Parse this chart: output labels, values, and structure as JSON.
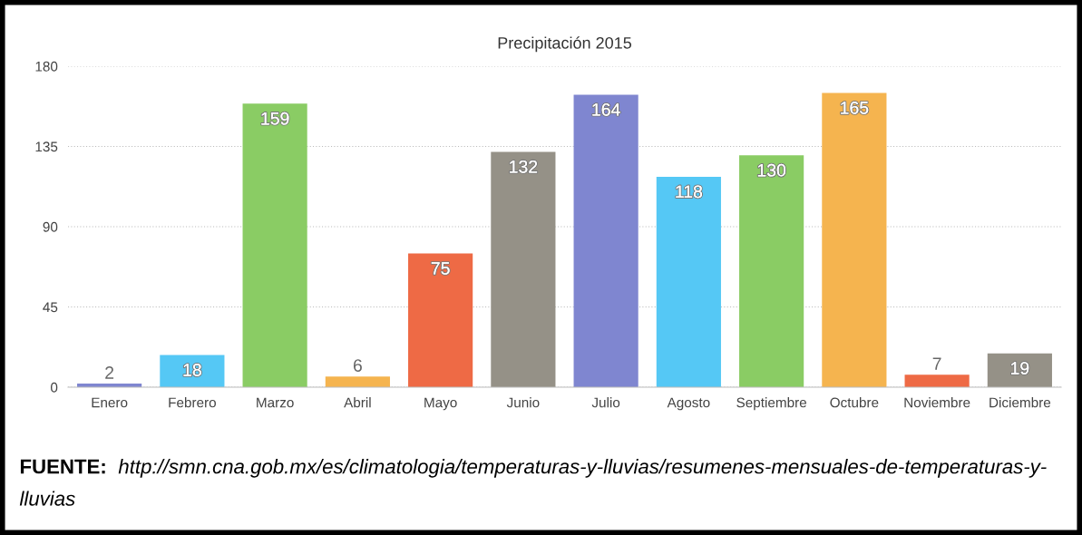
{
  "chart_data": {
    "type": "bar",
    "title": "Precipitación 2015",
    "categories": [
      "Enero",
      "Febrero",
      "Marzo",
      "Abril",
      "Mayo",
      "Junio",
      "Julio",
      "Agosto",
      "Septiembre",
      "Octubre",
      "Noviembre",
      "Diciembre"
    ],
    "values": [
      2,
      18,
      159,
      6,
      75,
      132,
      164,
      118,
      130,
      165,
      7,
      19
    ],
    "colors": [
      "#7f86d0",
      "#55c8f5",
      "#8acc64",
      "#f5b44f",
      "#ee6a45",
      "#959187",
      "#7f86d0",
      "#55c8f5",
      "#8acc64",
      "#f5b44f",
      "#ee6a45",
      "#959187"
    ],
    "ylim": [
      0,
      180
    ],
    "yticks": [
      0,
      45,
      90,
      135,
      180
    ],
    "grid": "y",
    "data_labels": true,
    "annotations": [
      "FUENTE: http://smn.cna.gob.mx/es/climatologia/temperaturas-y-lluvias/resumenes-mensuales-de-temperaturas-y-lluvias"
    ]
  }
}
